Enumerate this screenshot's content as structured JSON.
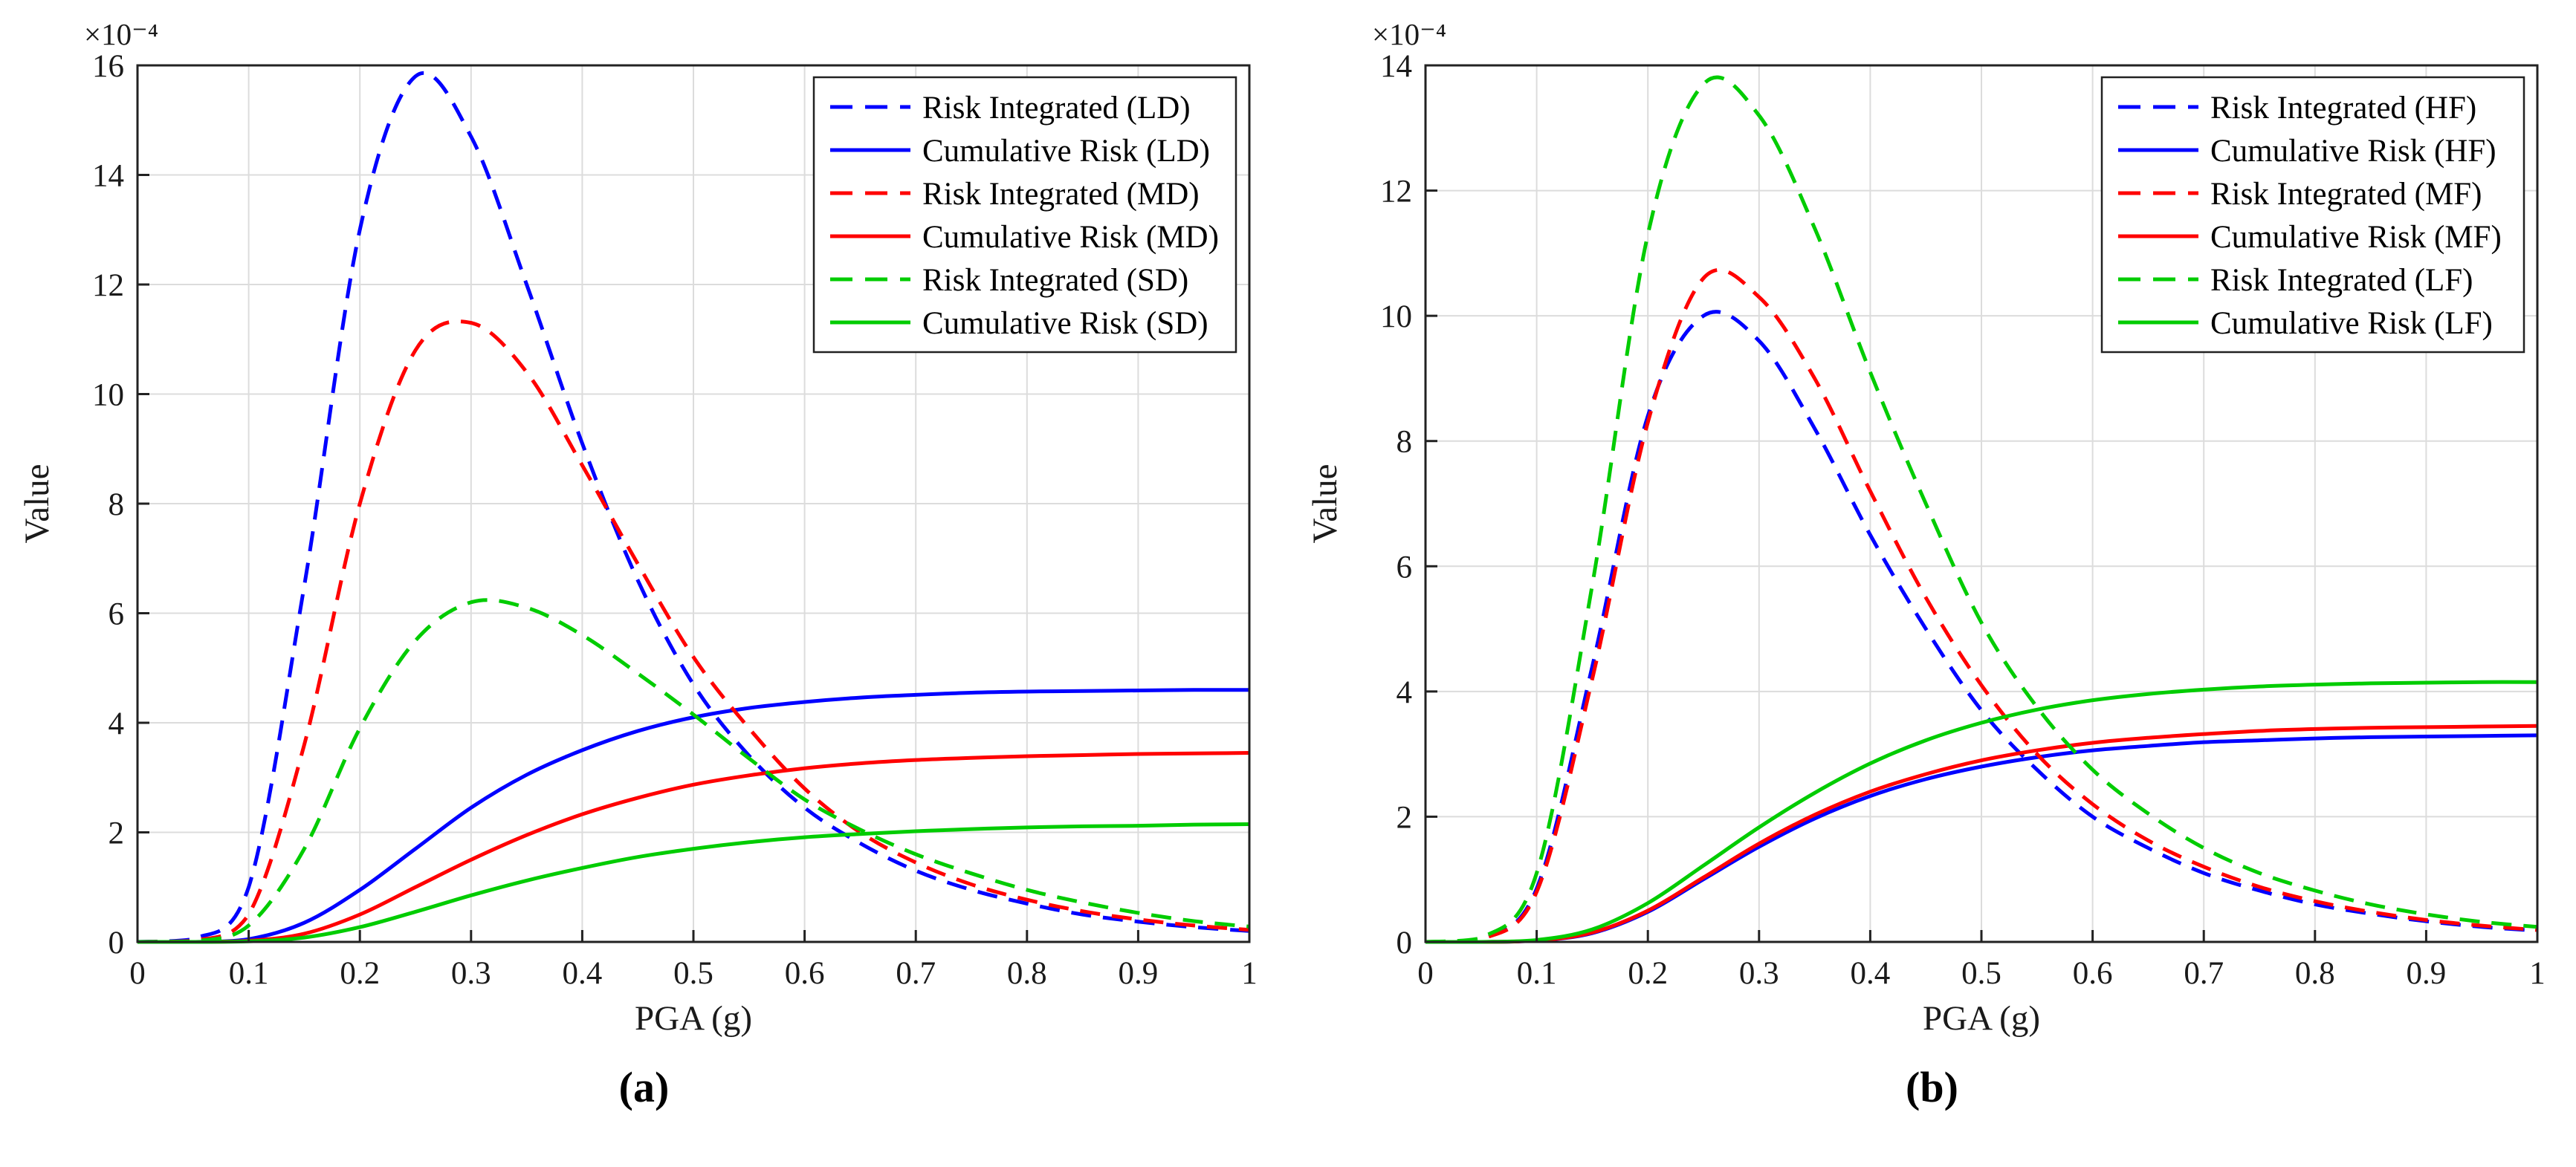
{
  "figure": {
    "captions": {
      "a": "(a)",
      "b": "(b)"
    }
  },
  "chart_data": [
    {
      "id": "a",
      "type": "line",
      "title": "",
      "xlabel": "PGA (g)",
      "ylabel": "Value",
      "y_scale_label": "×10⁻⁴",
      "xlim": [
        0,
        1
      ],
      "ylim": [
        0,
        16
      ],
      "xticks": [
        0,
        0.1,
        0.2,
        0.3,
        0.4,
        0.5,
        0.6,
        0.7,
        0.8,
        0.9,
        1
      ],
      "yticks": [
        0,
        2,
        4,
        6,
        8,
        10,
        12,
        14,
        16
      ],
      "grid": true,
      "legend_position": "top-right",
      "x": [
        0,
        0.05,
        0.1,
        0.15,
        0.2,
        0.25,
        0.3,
        0.35,
        0.4,
        0.45,
        0.5,
        0.55,
        0.6,
        0.65,
        0.7,
        0.75,
        0.8,
        0.85,
        0.9,
        0.95,
        1
      ],
      "series": [
        {
          "name": "Risk Integrated (LD)",
          "color": "#0000ff",
          "dash": true,
          "values": [
            0,
            0.05,
            1.0,
            6.5,
            13.0,
            15.8,
            14.7,
            12.0,
            9.1,
            6.6,
            4.7,
            3.4,
            2.45,
            1.8,
            1.3,
            0.95,
            0.7,
            0.5,
            0.37,
            0.27,
            0.2
          ]
        },
        {
          "name": "Cumulative Risk (LD)",
          "color": "#0000ff",
          "dash": false,
          "values": [
            0,
            0,
            0.05,
            0.35,
            0.95,
            1.7,
            2.45,
            3.05,
            3.5,
            3.85,
            4.1,
            4.27,
            4.38,
            4.46,
            4.51,
            4.55,
            4.57,
            4.58,
            4.59,
            4.6,
            4.6
          ]
        },
        {
          "name": "Risk Integrated (MD)",
          "color": "#ff0000",
          "dash": true,
          "values": [
            0,
            0.02,
            0.5,
            3.6,
            8.0,
            10.8,
            11.3,
            10.4,
            8.7,
            6.9,
            5.2,
            3.9,
            2.8,
            2.0,
            1.45,
            1.05,
            0.77,
            0.56,
            0.41,
            0.3,
            0.22
          ]
        },
        {
          "name": "Cumulative Risk (MD)",
          "color": "#ff0000",
          "dash": false,
          "values": [
            0,
            0,
            0.02,
            0.15,
            0.5,
            1.0,
            1.5,
            1.95,
            2.33,
            2.63,
            2.87,
            3.04,
            3.17,
            3.26,
            3.32,
            3.36,
            3.39,
            3.41,
            3.43,
            3.44,
            3.45
          ]
        },
        {
          "name": "Risk Integrated (SD)",
          "color": "#00cc00",
          "dash": true,
          "values": [
            0,
            0.01,
            0.3,
            1.7,
            3.9,
            5.5,
            6.2,
            6.1,
            5.6,
            4.9,
            4.15,
            3.35,
            2.6,
            2.05,
            1.6,
            1.25,
            0.95,
            0.72,
            0.53,
            0.38,
            0.28
          ]
        },
        {
          "name": "Cumulative Risk (SD)",
          "color": "#00cc00",
          "dash": false,
          "values": [
            0,
            0,
            0.01,
            0.08,
            0.27,
            0.55,
            0.85,
            1.12,
            1.35,
            1.55,
            1.7,
            1.82,
            1.91,
            1.97,
            2.02,
            2.06,
            2.09,
            2.11,
            2.12,
            2.14,
            2.15
          ]
        }
      ]
    },
    {
      "id": "b",
      "type": "line",
      "title": "",
      "xlabel": "PGA (g)",
      "ylabel": "Value",
      "y_scale_label": "×10⁻⁴",
      "xlim": [
        0,
        1
      ],
      "ylim": [
        0,
        14
      ],
      "xticks": [
        0,
        0.1,
        0.2,
        0.3,
        0.4,
        0.5,
        0.6,
        0.7,
        0.8,
        0.9,
        1
      ],
      "yticks": [
        0,
        2,
        4,
        6,
        8,
        10,
        12,
        14
      ],
      "grid": true,
      "legend_position": "top-right",
      "x": [
        0,
        0.05,
        0.1,
        0.15,
        0.2,
        0.25,
        0.3,
        0.35,
        0.4,
        0.45,
        0.5,
        0.55,
        0.6,
        0.65,
        0.7,
        0.75,
        0.8,
        0.85,
        0.9,
        0.95,
        1
      ],
      "series": [
        {
          "name": "Risk Integrated (HF)",
          "color": "#0000ff",
          "dash": true,
          "values": [
            0,
            0.04,
            0.85,
            4.4,
            8.4,
            10.0,
            9.6,
            8.2,
            6.5,
            5.0,
            3.7,
            2.75,
            2.0,
            1.5,
            1.1,
            0.82,
            0.6,
            0.45,
            0.33,
            0.24,
            0.18
          ]
        },
        {
          "name": "Cumulative Risk (HF)",
          "color": "#0000ff",
          "dash": false,
          "values": [
            0,
            0,
            0.02,
            0.14,
            0.48,
            1.0,
            1.52,
            1.97,
            2.33,
            2.6,
            2.8,
            2.95,
            3.06,
            3.13,
            3.19,
            3.22,
            3.25,
            3.27,
            3.28,
            3.29,
            3.3
          ]
        },
        {
          "name": "Risk Integrated (MF)",
          "color": "#ff0000",
          "dash": true,
          "values": [
            0,
            0.04,
            0.8,
            4.2,
            8.3,
            10.6,
            10.3,
            9.0,
            7.2,
            5.5,
            4.1,
            3.0,
            2.2,
            1.62,
            1.2,
            0.88,
            0.65,
            0.48,
            0.35,
            0.26,
            0.19
          ]
        },
        {
          "name": "Cumulative Risk (MF)",
          "color": "#ff0000",
          "dash": false,
          "values": [
            0,
            0,
            0.02,
            0.15,
            0.5,
            1.03,
            1.57,
            2.03,
            2.4,
            2.68,
            2.9,
            3.06,
            3.18,
            3.26,
            3.32,
            3.37,
            3.4,
            3.42,
            3.43,
            3.44,
            3.45
          ]
        },
        {
          "name": "Risk Integrated (LF)",
          "color": "#00cc00",
          "dash": true,
          "values": [
            0,
            0.06,
            1.1,
            5.7,
            11.3,
            13.7,
            13.2,
            11.4,
            9.1,
            7.0,
            5.1,
            3.75,
            2.75,
            2.05,
            1.5,
            1.1,
            0.82,
            0.6,
            0.44,
            0.32,
            0.24
          ]
        },
        {
          "name": "Cumulative Risk (LF)",
          "color": "#00cc00",
          "dash": false,
          "values": [
            0,
            0,
            0.03,
            0.2,
            0.62,
            1.22,
            1.83,
            2.38,
            2.85,
            3.22,
            3.5,
            3.71,
            3.86,
            3.96,
            4.03,
            4.08,
            4.11,
            4.13,
            4.14,
            4.15,
            4.15
          ]
        }
      ]
    }
  ]
}
